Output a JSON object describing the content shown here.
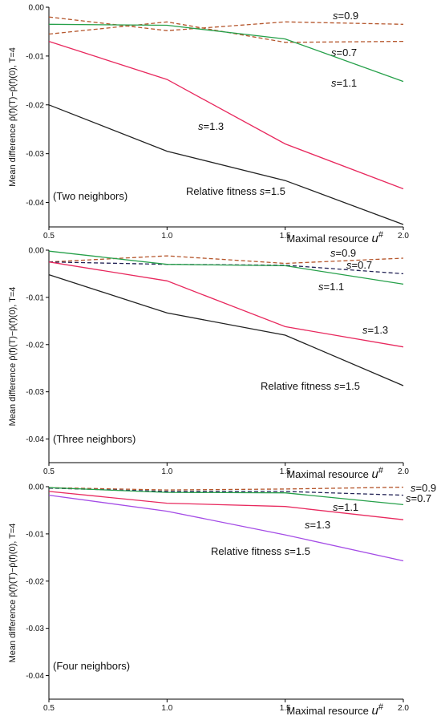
{
  "figure_ylabel": "Mean difference p̄(f)(T)−p̄(f)(0), T=4",
  "chart_data": [
    {
      "type": "line",
      "panel_label": "(Two neighbors)",
      "xlabel": "Maximal resource u#",
      "xlim": [
        0.5,
        2.0
      ],
      "ylim": [
        -0.045,
        0.0
      ],
      "x_ticks": [
        0.5,
        1.0,
        1.5,
        2.0
      ],
      "y_ticks": [
        0.0,
        -0.01,
        -0.02,
        -0.03,
        -0.04
      ],
      "x_tick_labels": [
        "0.5",
        "1.0",
        "1.5",
        "2.0"
      ],
      "y_tick_labels": [
        "0.00",
        "-0.01",
        "-0.02",
        "-0.03",
        "-0.04"
      ],
      "x": [
        0.5,
        1.0,
        1.5,
        2.0
      ],
      "series": [
        {
          "name": "s=0.9",
          "values": [
            -0.002,
            -0.0048,
            -0.003,
            -0.0035
          ],
          "color": "#b5562c",
          "dashed": true
        },
        {
          "name": "s=0.7",
          "values": [
            -0.0055,
            -0.003,
            -0.0072,
            -0.007
          ],
          "color": "#b5562c",
          "dashed": true
        },
        {
          "name": "s=1.1",
          "values": [
            -0.0035,
            -0.0037,
            -0.0065,
            -0.0152
          ],
          "color": "#26a04a",
          "dashed": false
        },
        {
          "name": "s=1.3",
          "values": [
            -0.007,
            -0.0148,
            -0.028,
            -0.0372
          ],
          "color": "#e8295e",
          "dashed": false
        },
        {
          "name": "Relative fitness s=1.5",
          "values": [
            -0.02,
            -0.0295,
            -0.0355,
            -0.0445
          ],
          "color": "#222222",
          "dashed": false
        }
      ]
    },
    {
      "type": "line",
      "panel_label": "(Three neighbors)",
      "xlabel": "Maximal resource u#",
      "xlim": [
        0.5,
        2.0
      ],
      "ylim": [
        -0.045,
        0.0
      ],
      "x_ticks": [
        0.5,
        1.0,
        1.5,
        2.0
      ],
      "y_ticks": [
        0.0,
        -0.01,
        -0.02,
        -0.03,
        -0.04
      ],
      "x_tick_labels": [
        "0.5",
        "1.0",
        "1.5",
        "2.0"
      ],
      "y_tick_labels": [
        "0.00",
        "-0.01",
        "-0.02",
        "-0.03",
        "-0.04"
      ],
      "x": [
        0.5,
        1.0,
        1.5,
        2.0
      ],
      "series": [
        {
          "name": "s=0.9",
          "values": [
            -0.0025,
            -0.0012,
            -0.0028,
            -0.0017
          ],
          "color": "#b5562c",
          "dashed": true
        },
        {
          "name": "s=0.7",
          "values": [
            -0.0025,
            -0.003,
            -0.0032,
            -0.005
          ],
          "color": "#222255",
          "dashed": true
        },
        {
          "name": "s=1.1",
          "values": [
            -0.0002,
            -0.003,
            -0.0033,
            -0.0072
          ],
          "color": "#26a04a",
          "dashed": false
        },
        {
          "name": "s=1.3",
          "values": [
            -0.0025,
            -0.0065,
            -0.0162,
            -0.0205
          ],
          "color": "#e8295e",
          "dashed": false
        },
        {
          "name": "Relative fitness s=1.5",
          "values": [
            -0.0052,
            -0.0133,
            -0.018,
            -0.0287
          ],
          "color": "#222222",
          "dashed": false
        }
      ]
    },
    {
      "type": "line",
      "panel_label": "(Four neighbors)",
      "xlabel": "Maximal resource u#",
      "xlim": [
        0.5,
        2.0
      ],
      "ylim": [
        -0.045,
        0.0
      ],
      "x_ticks": [
        0.5,
        1.0,
        1.5,
        2.0
      ],
      "y_ticks": [
        0.0,
        -0.01,
        -0.02,
        -0.03,
        -0.04
      ],
      "x_tick_labels": [
        "0.5",
        "1.0",
        "1.5",
        "2.0"
      ],
      "y_tick_labels": [
        "0.00",
        "-0.01",
        "-0.02",
        "-0.03",
        "-0.04"
      ],
      "x": [
        0.5,
        1.0,
        1.5,
        2.0
      ],
      "series": [
        {
          "name": "s=0.9",
          "values": [
            -0.0002,
            -0.0007,
            -0.0005,
            -0.0001
          ],
          "color": "#b5562c",
          "dashed": true
        },
        {
          "name": "s=0.7",
          "values": [
            -0.0003,
            -0.001,
            -0.001,
            -0.0018
          ],
          "color": "#222255",
          "dashed": true
        },
        {
          "name": "s=1.1",
          "values": [
            -0.0002,
            -0.0012,
            -0.0013,
            -0.0038
          ],
          "color": "#26a04a",
          "dashed": false
        },
        {
          "name": "s=1.3",
          "values": [
            -0.001,
            -0.0035,
            -0.0042,
            -0.007
          ],
          "color": "#e8295e",
          "dashed": false
        },
        {
          "name": "Relative fitness s=1.5",
          "values": [
            -0.0018,
            -0.0052,
            -0.0102,
            -0.0157
          ],
          "color": "#a44ce6",
          "dashed": false
        }
      ]
    }
  ]
}
